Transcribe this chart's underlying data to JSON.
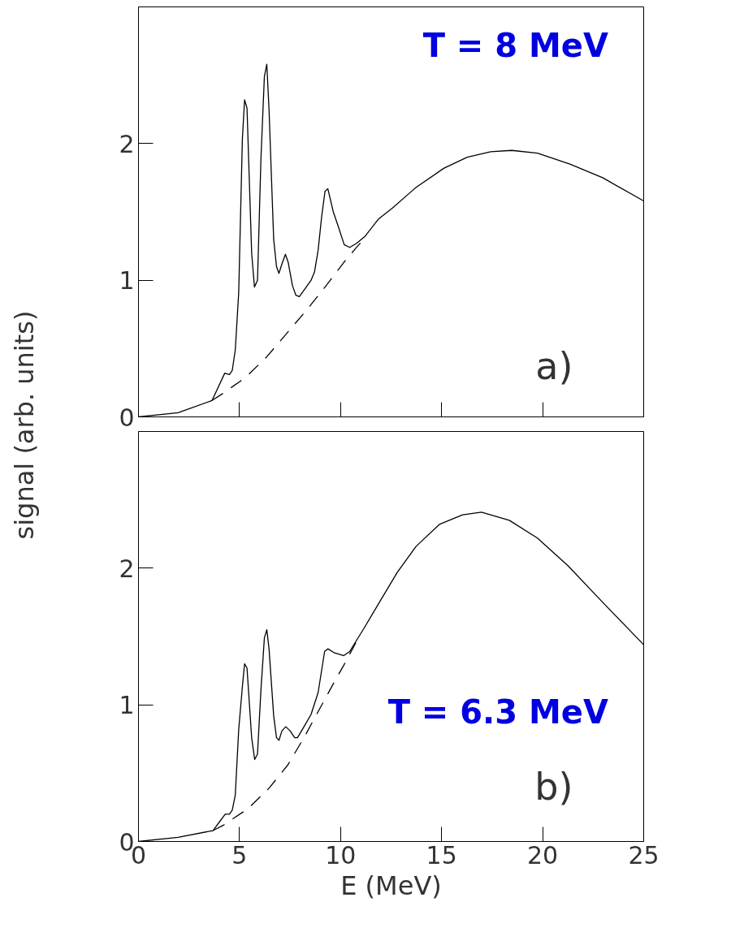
{
  "chart_data": [
    {
      "type": "line",
      "ylabel": "signal (arb. units)",
      "annotations": [
        "T = 8 MeV",
        "a)"
      ],
      "xlim": [
        0,
        25
      ],
      "xticks": [
        0,
        5,
        10,
        15,
        20,
        25
      ],
      "ylim": [
        0,
        3
      ],
      "yticks": [
        0,
        1,
        2
      ],
      "tick_labels": "y",
      "grid": false,
      "marker": "none",
      "series": [
        {
          "color": "#000000",
          "line_style": "solid",
          "x": [
            0,
            1.96,
            3.64,
            4.27,
            4.5,
            4.64,
            4.79,
            4.96,
            5.14,
            5.25,
            5.37,
            5.6,
            5.74,
            5.89,
            6.06,
            6.23,
            6.35,
            6.46,
            6.69,
            6.83,
            6.95,
            7.1,
            7.27,
            7.41,
            7.62,
            7.79,
            7.96,
            8.25,
            8.54,
            8.71,
            8.89,
            9.06,
            9.23,
            9.37,
            9.64,
            9.87,
            10.18,
            10.45,
            10.79,
            11.2,
            11.89,
            12.58,
            13.74,
            15.12,
            16.27,
            17.43,
            18.47,
            19.74,
            21.35,
            22.97,
            25
          ],
          "values": [
            0,
            0.03,
            0.12,
            0.32,
            0.31,
            0.34,
            0.49,
            0.91,
            2.03,
            2.32,
            2.26,
            1.2,
            0.95,
            1.0,
            1.89,
            2.49,
            2.58,
            2.25,
            1.3,
            1.1,
            1.05,
            1.12,
            1.19,
            1.13,
            0.96,
            0.89,
            0.88,
            0.94,
            1.0,
            1.06,
            1.22,
            1.46,
            1.65,
            1.67,
            1.5,
            1.4,
            1.26,
            1.24,
            1.27,
            1.32,
            1.45,
            1.53,
            1.68,
            1.82,
            1.9,
            1.94,
            1.95,
            1.93,
            1.85,
            1.75,
            1.58
          ]
        },
        {
          "color": "#000000",
          "line_style": "dashed",
          "x": [
            3.64,
            4.16,
            5.31,
            6.35,
            7.33,
            8.31,
            9.23,
            10.16,
            10.73,
            11.2
          ],
          "values": [
            0.12,
            0.17,
            0.29,
            0.44,
            0.61,
            0.78,
            0.95,
            1.13,
            1.23,
            1.31
          ]
        }
      ]
    },
    {
      "type": "line",
      "xlabel": "E (MeV)",
      "annotations": [
        "T = 6.3 MeV",
        "b)"
      ],
      "xlim": [
        0,
        25
      ],
      "xticks": [
        0,
        5,
        10,
        15,
        20,
        25
      ],
      "ylim": [
        0,
        3
      ],
      "yticks": [
        0,
        1,
        2
      ],
      "grid": false,
      "marker": "none",
      "series": [
        {
          "color": "#000000",
          "line_style": "solid",
          "x": [
            0,
            1.96,
            3.69,
            4.04,
            4.29,
            4.5,
            4.64,
            4.79,
            4.96,
            5.14,
            5.25,
            5.37,
            5.6,
            5.75,
            5.89,
            6.06,
            6.23,
            6.35,
            6.46,
            6.69,
            6.83,
            6.95,
            7.1,
            7.29,
            7.5,
            7.73,
            7.87,
            8.19,
            8.54,
            8.89,
            9.21,
            9.37,
            9.7,
            10.16,
            10.45,
            11.2,
            12.0,
            12.81,
            13.74,
            14.89,
            16.04,
            16.97,
            18.35,
            19.74,
            21.24,
            22.97,
            25
          ],
          "values": [
            0,
            0.03,
            0.08,
            0.15,
            0.2,
            0.2,
            0.23,
            0.34,
            0.82,
            1.13,
            1.3,
            1.27,
            0.76,
            0.6,
            0.64,
            1.11,
            1.49,
            1.55,
            1.41,
            0.92,
            0.76,
            0.74,
            0.81,
            0.84,
            0.81,
            0.76,
            0.76,
            0.84,
            0.93,
            1.09,
            1.39,
            1.41,
            1.38,
            1.36,
            1.39,
            1.57,
            1.77,
            1.97,
            2.16,
            2.32,
            2.39,
            2.41,
            2.35,
            2.22,
            2.02,
            1.75,
            1.44
          ]
        },
        {
          "color": "#000000",
          "line_style": "dashed",
          "x": [
            3.69,
            4.21,
            5.42,
            6.46,
            7.39,
            8.19,
            9.0,
            9.7,
            10.16,
            10.85
          ],
          "values": [
            0.08,
            0.12,
            0.24,
            0.39,
            0.56,
            0.76,
            0.98,
            1.17,
            1.29,
            1.48
          ]
        }
      ]
    }
  ]
}
